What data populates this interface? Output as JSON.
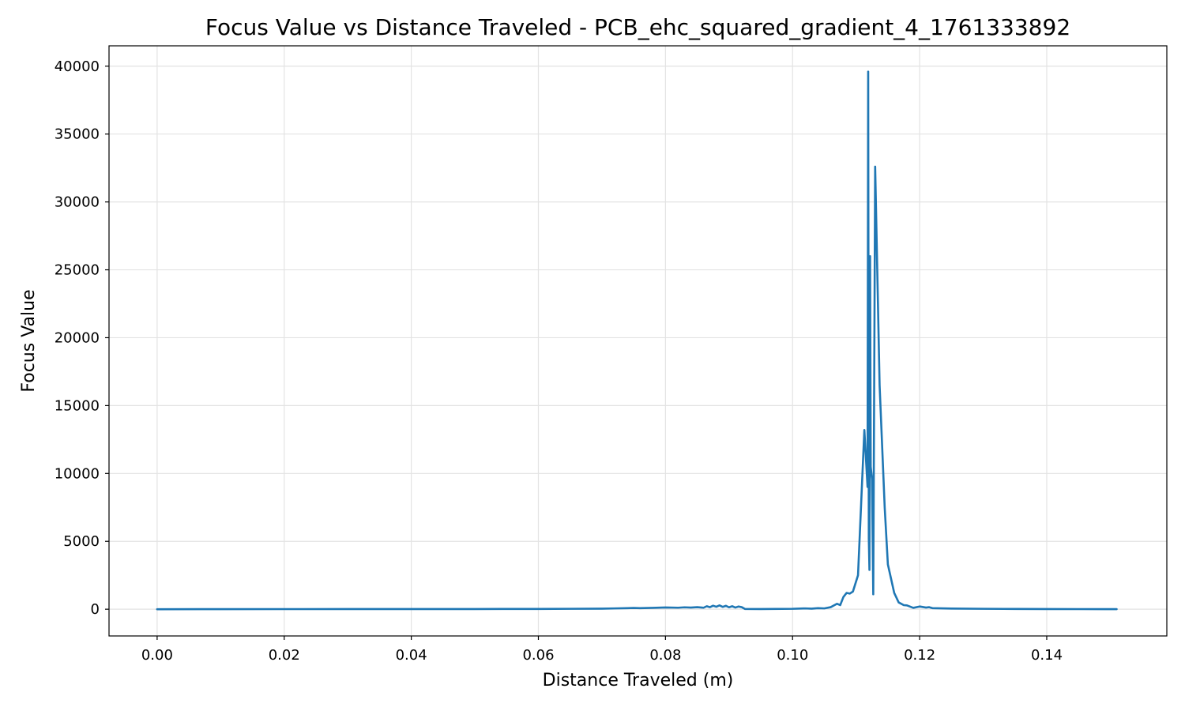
{
  "chart_data": {
    "type": "line",
    "title": "Focus Value vs Distance Traveled - PCB_ehc_squared_gradient_4_1761333892",
    "xlabel": "Distance Traveled (m)",
    "ylabel": "Focus Value",
    "xlim": [
      -0.00757,
      0.1589
    ],
    "ylim": [
      -1970,
      41500
    ],
    "xticks": [
      0.0,
      0.02,
      0.04,
      0.06,
      0.08,
      0.1,
      0.12,
      0.14
    ],
    "xtick_labels": [
      "0.00",
      "0.02",
      "0.04",
      "0.06",
      "0.08",
      "0.10",
      "0.12",
      "0.14"
    ],
    "yticks": [
      0,
      5000,
      10000,
      15000,
      20000,
      25000,
      30000,
      35000,
      40000
    ],
    "ytick_labels": [
      "0",
      "5000",
      "10000",
      "15000",
      "20000",
      "25000",
      "30000",
      "35000",
      "40000"
    ],
    "grid": true,
    "series": [
      {
        "color": "#1f77b4",
        "x": [
          0.0,
          0.01,
          0.02,
          0.03,
          0.04,
          0.05,
          0.06,
          0.065,
          0.07,
          0.072,
          0.074,
          0.075,
          0.076,
          0.078,
          0.08,
          0.082,
          0.083,
          0.084,
          0.085,
          0.086,
          0.0865,
          0.087,
          0.0875,
          0.088,
          0.0885,
          0.089,
          0.0895,
          0.09,
          0.0905,
          0.091,
          0.0915,
          0.092,
          0.0925,
          0.095,
          0.1,
          0.102,
          0.103,
          0.104,
          0.105,
          0.106,
          0.107,
          0.1075,
          0.108,
          0.1085,
          0.109,
          0.1095,
          0.1103,
          0.1113,
          0.1118,
          0.1119,
          0.112,
          0.1121,
          0.1122,
          0.1123,
          0.1125,
          0.1127,
          0.113,
          0.1137,
          0.1145,
          0.115,
          0.116,
          0.1167,
          0.1175,
          0.118,
          0.119,
          0.12,
          0.121,
          0.1215,
          0.122,
          0.125,
          0.13,
          0.135,
          0.14,
          0.145,
          0.151
        ],
        "y": [
          0,
          5,
          8,
          10,
          12,
          15,
          20,
          30,
          40,
          60,
          80,
          90,
          80,
          100,
          130,
          110,
          140,
          120,
          150,
          110,
          220,
          150,
          260,
          180,
          280,
          170,
          250,
          140,
          220,
          120,
          200,
          150,
          20,
          10,
          30,
          60,
          40,
          80,
          60,
          150,
          400,
          300,
          900,
          1200,
          1150,
          1300,
          2500,
          13200,
          9000,
          39600,
          5200,
          2900,
          26000,
          10500,
          9600,
          1100,
          32600,
          16500,
          7500,
          3300,
          1200,
          500,
          300,
          280,
          100,
          200,
          120,
          150,
          80,
          50,
          30,
          20,
          10,
          8,
          5
        ]
      }
    ]
  }
}
